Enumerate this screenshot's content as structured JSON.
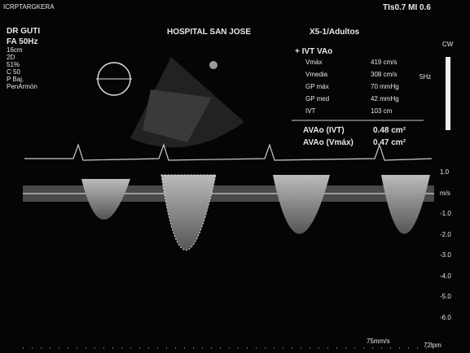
{
  "header": {
    "left": "ICRPTARGKERA",
    "right": "TIs0.7  MI 0.6",
    "doctor": "DR GUTI",
    "hospital": "HOSPITAL SAN JOSE",
    "probe": "X5-1/Adultos"
  },
  "settings": [
    "FA 50Hz",
    "16cm",
    "2D",
    "51%",
    "C 50",
    "P Baj.",
    "PenArmón"
  ],
  "measurements": {
    "title": "+ IVT VAo",
    "rows": [
      [
        "Vmáx",
        "419 cm/s"
      ],
      [
        "Vmedia",
        "308 cm/s"
      ],
      [
        "GP máx",
        "70 mmHg"
      ],
      [
        "GP med",
        "42 mmHg"
      ],
      [
        "IVT",
        "103 cm"
      ]
    ],
    "results": [
      [
        "AVAo (IVT)",
        "0.48 cm²"
      ],
      [
        "AVAo (Vmáx)",
        "0.47 cm²"
      ]
    ]
  },
  "doppler": {
    "mode": "CW",
    "freq": "5Hz"
  },
  "scale": {
    "labels": [
      "1.0",
      "m/s",
      "-1.0",
      "-2.0",
      "-3.0",
      "-4.0",
      "-5.0",
      "-6.0"
    ]
  },
  "footer": {
    "sweep": "75mm/s",
    "hr": "72lpm"
  }
}
